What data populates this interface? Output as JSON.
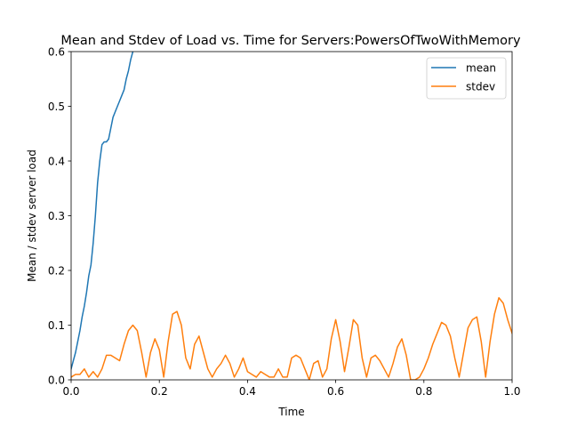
{
  "chart_data": {
    "type": "line",
    "title": "Mean and Stdev of Load vs. Time for Servers:PowersOfTwoWithMemory",
    "xlabel": "Time",
    "ylabel": "Mean / stdev server load",
    "xlim": [
      0.0,
      1.0
    ],
    "ylim": [
      0.0,
      0.6
    ],
    "xticks": [
      "0.0",
      "0.2",
      "0.4",
      "0.6",
      "0.8",
      "1.0"
    ],
    "yticks": [
      "0.0",
      "0.1",
      "0.2",
      "0.3",
      "0.4",
      "0.5",
      "0.6"
    ],
    "grid": false,
    "legend_position": "top-right",
    "series": [
      {
        "name": "mean",
        "color": "#1f77b4",
        "x": [
          0.0,
          0.005,
          0.01,
          0.015,
          0.02,
          0.025,
          0.03,
          0.035,
          0.04,
          0.045,
          0.05,
          0.055,
          0.06,
          0.065,
          0.07,
          0.075,
          0.08,
          0.085,
          0.09,
          0.095,
          0.1,
          0.105,
          0.11,
          0.115,
          0.12,
          0.125,
          0.13,
          0.135,
          0.14,
          0.145,
          0.15
        ],
        "y": [
          0.02,
          0.035,
          0.05,
          0.07,
          0.09,
          0.115,
          0.135,
          0.16,
          0.19,
          0.21,
          0.25,
          0.3,
          0.36,
          0.4,
          0.43,
          0.435,
          0.435,
          0.44,
          0.46,
          0.48,
          0.49,
          0.5,
          0.51,
          0.52,
          0.53,
          0.55,
          0.565,
          0.585,
          0.6,
          0.61,
          0.62
        ]
      },
      {
        "name": "stdev",
        "color": "#ff7f0e",
        "x": [
          0.0,
          0.01,
          0.02,
          0.03,
          0.04,
          0.05,
          0.06,
          0.07,
          0.08,
          0.09,
          0.1,
          0.11,
          0.12,
          0.13,
          0.14,
          0.15,
          0.16,
          0.17,
          0.18,
          0.19,
          0.2,
          0.21,
          0.22,
          0.23,
          0.24,
          0.25,
          0.26,
          0.27,
          0.28,
          0.29,
          0.3,
          0.31,
          0.32,
          0.33,
          0.34,
          0.35,
          0.36,
          0.37,
          0.38,
          0.39,
          0.4,
          0.41,
          0.42,
          0.43,
          0.44,
          0.45,
          0.46,
          0.47,
          0.48,
          0.49,
          0.5,
          0.51,
          0.52,
          0.53,
          0.54,
          0.55,
          0.56,
          0.57,
          0.58,
          0.59,
          0.6,
          0.61,
          0.62,
          0.63,
          0.64,
          0.65,
          0.66,
          0.67,
          0.68,
          0.69,
          0.7,
          0.71,
          0.72,
          0.73,
          0.74,
          0.75,
          0.76,
          0.77,
          0.78,
          0.79,
          0.8,
          0.81,
          0.82,
          0.83,
          0.84,
          0.85,
          0.86,
          0.87,
          0.88,
          0.89,
          0.9,
          0.91,
          0.92,
          0.93,
          0.94,
          0.95,
          0.96,
          0.97,
          0.98,
          0.99,
          1.0
        ],
        "y": [
          0.005,
          0.01,
          0.01,
          0.02,
          0.005,
          0.015,
          0.005,
          0.02,
          0.045,
          0.045,
          0.04,
          0.035,
          0.065,
          0.09,
          0.1,
          0.09,
          0.05,
          0.005,
          0.05,
          0.075,
          0.055,
          0.005,
          0.07,
          0.12,
          0.125,
          0.1,
          0.04,
          0.02,
          0.065,
          0.08,
          0.05,
          0.02,
          0.005,
          0.02,
          0.03,
          0.045,
          0.03,
          0.005,
          0.02,
          0.04,
          0.015,
          0.01,
          0.005,
          0.015,
          0.01,
          0.005,
          0.005,
          0.02,
          0.005,
          0.005,
          0.04,
          0.045,
          0.04,
          0.02,
          0.0,
          0.03,
          0.035,
          0.005,
          0.02,
          0.075,
          0.11,
          0.07,
          0.015,
          0.06,
          0.11,
          0.1,
          0.04,
          0.005,
          0.04,
          0.045,
          0.035,
          0.02,
          0.005,
          0.03,
          0.06,
          0.075,
          0.045,
          0.0,
          0.0,
          0.005,
          0.02,
          0.04,
          0.065,
          0.085,
          0.105,
          0.1,
          0.08,
          0.04,
          0.005,
          0.05,
          0.095,
          0.11,
          0.115,
          0.07,
          0.005,
          0.07,
          0.12,
          0.15,
          0.14,
          0.11,
          0.085
        ]
      }
    ]
  }
}
